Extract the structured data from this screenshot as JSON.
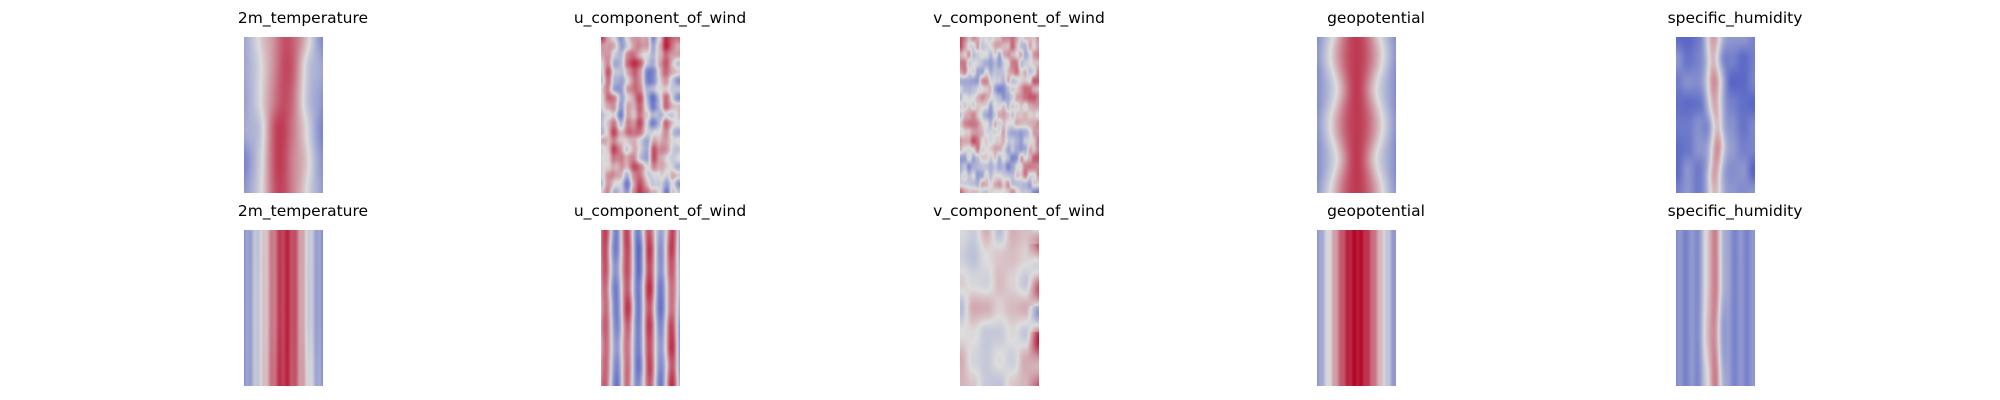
{
  "figure": {
    "rows": [
      {
        "row": "top",
        "panels": [
          {
            "title": "2m_temperature",
            "pattern": "warm-band-smooth"
          },
          {
            "title": "u_component_of_wind",
            "pattern": "mixed-streaks"
          },
          {
            "title": "v_component_of_wind",
            "pattern": "neutral-speckle"
          },
          {
            "title": "geopotential",
            "pattern": "warm-band-bulges"
          },
          {
            "title": "specific_humidity",
            "pattern": "narrow-warm-on-cold"
          }
        ]
      },
      {
        "row": "bottom",
        "panels": [
          {
            "title": "2m_temperature",
            "pattern": "warm-band-striped"
          },
          {
            "title": "u_component_of_wind",
            "pattern": "vertical-stripes"
          },
          {
            "title": "v_component_of_wind",
            "pattern": "neutral-warm-edge"
          },
          {
            "title": "geopotential",
            "pattern": "warm-band-wide-striped"
          },
          {
            "title": "specific_humidity",
            "pattern": "narrow-warm-on-blue"
          }
        ]
      }
    ]
  },
  "chart_data": {
    "type": "heatmap",
    "colormap": "coolwarm",
    "layout": "2 rows x 5 columns",
    "axes_visible": false,
    "colorbar": false,
    "titles": [
      [
        "2m_temperature",
        "u_component_of_wind",
        "v_component_of_wind",
        "geopotential",
        "specific_humidity"
      ],
      [
        "2m_temperature",
        "u_component_of_wind",
        "v_component_of_wind",
        "geopotential",
        "specific_humidity"
      ]
    ],
    "colors": {
      "cold": "#3b4cc0",
      "neutral": "#dddddd",
      "warm": "#b40426"
    }
  }
}
